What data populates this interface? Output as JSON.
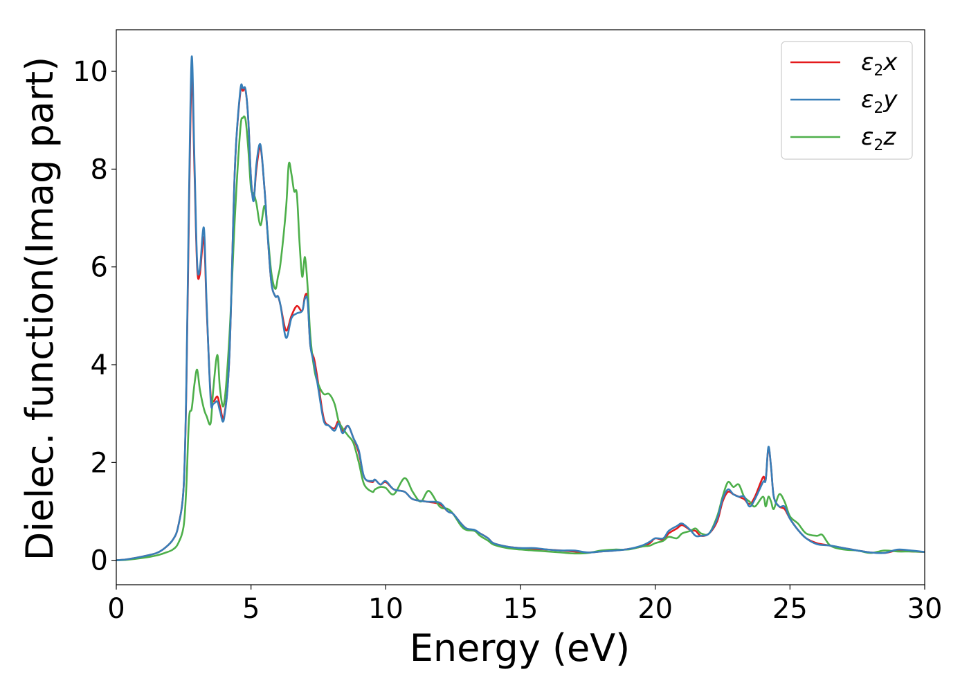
{
  "chart_data": {
    "type": "line",
    "xlabel": "Energy (eV)",
    "ylabel": "Dielec. function(Imag part)",
    "xlim": [
      0,
      30
    ],
    "ylim": [
      -0.5,
      10.85
    ],
    "xticks": [
      0,
      5,
      10,
      15,
      20,
      25,
      30
    ],
    "yticks": [
      0,
      2,
      4,
      6,
      8,
      10
    ],
    "xtick_labels": [
      "0",
      "5",
      "10",
      "15",
      "20",
      "25",
      "30"
    ],
    "ytick_labels": [
      "0",
      "2",
      "4",
      "6",
      "8",
      "10"
    ],
    "grid": false,
    "legend_position": "top-right",
    "series": [
      {
        "name": "ε2x",
        "legend_main": "ε",
        "legend_sub": "2",
        "legend_tail": "x",
        "color": "#e41a1c",
        "x": [
          0,
          0.4,
          1,
          1.5,
          1.8,
          2.1,
          2.3,
          2.5,
          2.6,
          2.7,
          2.8,
          2.9,
          3.0,
          3.1,
          3.25,
          3.35,
          3.5,
          3.6,
          3.75,
          3.85,
          4.0,
          4.2,
          4.4,
          4.6,
          4.7,
          4.8,
          4.9,
          5.0,
          5.1,
          5.2,
          5.35,
          5.5,
          5.6,
          5.75,
          5.9,
          6.0,
          6.1,
          6.3,
          6.5,
          6.7,
          6.9,
          7.0,
          7.1,
          7.2,
          7.35,
          7.5,
          7.7,
          7.9,
          8.1,
          8.25,
          8.4,
          8.6,
          8.8,
          9.0,
          9.2,
          9.5,
          9.6,
          9.8,
          10.0,
          10.3,
          10.7,
          11.0,
          11.5,
          12.0,
          12.3,
          12.5,
          12.8,
          13.0,
          13.3,
          13.5,
          13.8,
          14.0,
          14.5,
          15.0,
          15.5,
          16.0,
          16.5,
          17.0,
          17.5,
          18.0,
          18.5,
          19.0,
          19.5,
          19.8,
          20.0,
          20.3,
          20.5,
          20.8,
          21.0,
          21.3,
          21.5,
          21.7,
          22.0,
          22.3,
          22.5,
          22.7,
          22.9,
          23.1,
          23.3,
          23.5,
          23.7,
          24.0,
          24.1,
          24.2,
          24.3,
          24.4,
          24.6,
          24.8,
          25.0,
          25.3,
          25.6,
          26.0,
          26.5,
          27.0,
          27.5,
          28.0,
          28.5,
          29.0,
          29.5,
          30.0
        ],
        "y": [
          0,
          0.02,
          0.08,
          0.15,
          0.25,
          0.42,
          0.7,
          1.5,
          3.5,
          7.2,
          9.95,
          8.0,
          6.0,
          5.85,
          6.6,
          5.2,
          3.4,
          3.25,
          3.35,
          3.15,
          2.95,
          4.2,
          8.0,
          9.55,
          9.6,
          9.6,
          9.0,
          7.8,
          7.4,
          8.0,
          8.45,
          7.6,
          6.8,
          5.7,
          5.4,
          5.4,
          5.2,
          4.7,
          5.0,
          5.2,
          5.1,
          5.4,
          5.35,
          4.4,
          4.1,
          3.6,
          2.9,
          2.75,
          2.7,
          2.85,
          2.65,
          2.75,
          2.5,
          2.2,
          1.7,
          1.6,
          1.65,
          1.55,
          1.6,
          1.45,
          1.4,
          1.25,
          1.2,
          1.15,
          1.0,
          0.95,
          0.75,
          0.65,
          0.6,
          0.55,
          0.45,
          0.35,
          0.28,
          0.25,
          0.23,
          0.22,
          0.2,
          0.18,
          0.16,
          0.18,
          0.2,
          0.23,
          0.28,
          0.35,
          0.45,
          0.42,
          0.55,
          0.65,
          0.72,
          0.62,
          0.6,
          0.5,
          0.55,
          0.8,
          1.2,
          1.4,
          1.35,
          1.3,
          1.25,
          1.15,
          1.3,
          1.7,
          1.65,
          2.3,
          1.9,
          1.3,
          1.1,
          1.05,
          0.85,
          0.62,
          0.45,
          0.35,
          0.3,
          0.25,
          0.2,
          0.16,
          0.15,
          0.2,
          0.18,
          0.17
        ]
      },
      {
        "name": "ε2y",
        "legend_main": "ε",
        "legend_sub": "2",
        "legend_tail": "y",
        "color": "#377eb8",
        "x": [
          0,
          0.4,
          1,
          1.5,
          1.8,
          2.1,
          2.3,
          2.5,
          2.6,
          2.7,
          2.8,
          2.9,
          3.0,
          3.1,
          3.25,
          3.35,
          3.5,
          3.6,
          3.75,
          3.85,
          4.0,
          4.2,
          4.4,
          4.6,
          4.7,
          4.8,
          4.9,
          5.0,
          5.1,
          5.2,
          5.35,
          5.5,
          5.6,
          5.75,
          5.9,
          6.0,
          6.1,
          6.3,
          6.5,
          6.7,
          6.9,
          7.0,
          7.1,
          7.2,
          7.35,
          7.5,
          7.7,
          7.9,
          8.1,
          8.25,
          8.4,
          8.6,
          8.8,
          9.0,
          9.2,
          9.5,
          9.6,
          9.8,
          10.0,
          10.3,
          10.7,
          11.0,
          11.5,
          12.0,
          12.3,
          12.5,
          12.8,
          13.0,
          13.3,
          13.5,
          13.8,
          14.0,
          14.5,
          15.0,
          15.5,
          16.0,
          16.5,
          17.0,
          17.5,
          18.0,
          18.5,
          19.0,
          19.5,
          19.8,
          20.0,
          20.3,
          20.5,
          20.8,
          21.0,
          21.3,
          21.5,
          21.7,
          22.0,
          22.3,
          22.5,
          22.7,
          22.9,
          23.1,
          23.3,
          23.5,
          23.7,
          24.0,
          24.1,
          24.2,
          24.3,
          24.4,
          24.6,
          24.8,
          25.0,
          25.3,
          25.6,
          26.0,
          26.5,
          27.0,
          27.5,
          28.0,
          28.5,
          29.0,
          29.5,
          30.0
        ],
        "y": [
          0,
          0.02,
          0.08,
          0.15,
          0.25,
          0.42,
          0.7,
          1.5,
          3.6,
          7.5,
          10.3,
          8.2,
          6.1,
          5.95,
          6.8,
          5.3,
          3.3,
          3.2,
          3.25,
          3.05,
          2.9,
          4.2,
          8.0,
          9.6,
          9.65,
          9.62,
          9.0,
          7.8,
          7.35,
          8.1,
          8.5,
          7.6,
          6.8,
          5.7,
          5.4,
          5.4,
          5.2,
          4.55,
          4.95,
          5.05,
          5.1,
          5.35,
          5.3,
          4.4,
          4.0,
          3.5,
          2.85,
          2.75,
          2.65,
          2.8,
          2.6,
          2.75,
          2.5,
          2.25,
          1.7,
          1.62,
          1.65,
          1.55,
          1.62,
          1.45,
          1.4,
          1.25,
          1.2,
          1.18,
          1.0,
          0.95,
          0.75,
          0.65,
          0.62,
          0.55,
          0.45,
          0.35,
          0.28,
          0.25,
          0.25,
          0.22,
          0.2,
          0.2,
          0.16,
          0.18,
          0.2,
          0.23,
          0.3,
          0.38,
          0.45,
          0.45,
          0.6,
          0.7,
          0.75,
          0.62,
          0.5,
          0.5,
          0.55,
          0.85,
          1.25,
          1.45,
          1.35,
          1.3,
          1.3,
          1.1,
          1.25,
          1.6,
          1.65,
          2.32,
          1.9,
          1.3,
          1.1,
          1.1,
          0.85,
          0.62,
          0.45,
          0.33,
          0.3,
          0.25,
          0.2,
          0.16,
          0.15,
          0.22,
          0.2,
          0.17
        ]
      },
      {
        "name": "ε2z",
        "legend_main": "ε",
        "legend_sub": "2",
        "legend_tail": "z",
        "color": "#4daf4a",
        "x": [
          0,
          0.4,
          1,
          1.5,
          1.8,
          2.1,
          2.3,
          2.5,
          2.6,
          2.7,
          2.8,
          2.9,
          3.0,
          3.1,
          3.25,
          3.35,
          3.5,
          3.6,
          3.75,
          3.85,
          4.0,
          4.2,
          4.4,
          4.6,
          4.7,
          4.8,
          4.9,
          5.0,
          5.1,
          5.2,
          5.35,
          5.5,
          5.6,
          5.75,
          5.9,
          6.0,
          6.1,
          6.3,
          6.4,
          6.5,
          6.6,
          6.7,
          6.8,
          6.9,
          7.0,
          7.1,
          7.2,
          7.35,
          7.5,
          7.7,
          7.9,
          8.1,
          8.25,
          8.4,
          8.6,
          8.8,
          9.0,
          9.2,
          9.5,
          9.6,
          9.8,
          10.0,
          10.3,
          10.7,
          11.0,
          11.3,
          11.6,
          12.0,
          12.3,
          12.5,
          12.8,
          13.0,
          13.3,
          13.5,
          13.8,
          14.0,
          14.5,
          15.0,
          15.5,
          16.0,
          16.5,
          17.0,
          17.5,
          18.0,
          18.5,
          19.0,
          19.5,
          19.8,
          20.0,
          20.3,
          20.5,
          20.8,
          21.0,
          21.3,
          21.5,
          21.7,
          22.0,
          22.3,
          22.5,
          22.7,
          22.9,
          23.1,
          23.3,
          23.5,
          23.7,
          24.0,
          24.1,
          24.2,
          24.3,
          24.4,
          24.6,
          24.8,
          25.0,
          25.3,
          25.6,
          26.0,
          26.2,
          26.5,
          27.0,
          27.5,
          28.0,
          28.5,
          29.0,
          29.5,
          30.0
        ],
        "y": [
          0,
          0.01,
          0.05,
          0.1,
          0.15,
          0.22,
          0.35,
          0.7,
          1.5,
          2.9,
          3.1,
          3.6,
          3.9,
          3.5,
          3.1,
          2.95,
          2.8,
          3.5,
          4.2,
          3.5,
          3.2,
          4.6,
          7.0,
          8.8,
          9.05,
          9.0,
          8.4,
          7.6,
          7.5,
          7.3,
          6.85,
          7.25,
          6.8,
          5.9,
          5.55,
          5.8,
          6.1,
          7.2,
          8.1,
          7.9,
          7.55,
          7.5,
          6.5,
          5.8,
          6.2,
          5.6,
          4.6,
          3.9,
          3.6,
          3.4,
          3.4,
          3.2,
          2.85,
          2.7,
          2.55,
          2.4,
          2.0,
          1.55,
          1.4,
          1.45,
          1.5,
          1.48,
          1.35,
          1.68,
          1.4,
          1.2,
          1.42,
          1.1,
          1.05,
          0.95,
          0.7,
          0.62,
          0.6,
          0.5,
          0.4,
          0.32,
          0.25,
          0.22,
          0.2,
          0.18,
          0.16,
          0.14,
          0.15,
          0.2,
          0.22,
          0.22,
          0.28,
          0.3,
          0.35,
          0.4,
          0.48,
          0.45,
          0.55,
          0.6,
          0.65,
          0.55,
          0.55,
          0.9,
          1.3,
          1.6,
          1.5,
          1.55,
          1.3,
          1.2,
          1.1,
          1.3,
          1.1,
          1.3,
          1.2,
          1.05,
          1.35,
          1.2,
          0.9,
          0.75,
          0.55,
          0.5,
          0.52,
          0.3,
          0.22,
          0.2,
          0.15,
          0.2,
          0.18,
          0.18,
          0.17
        ]
      }
    ]
  }
}
